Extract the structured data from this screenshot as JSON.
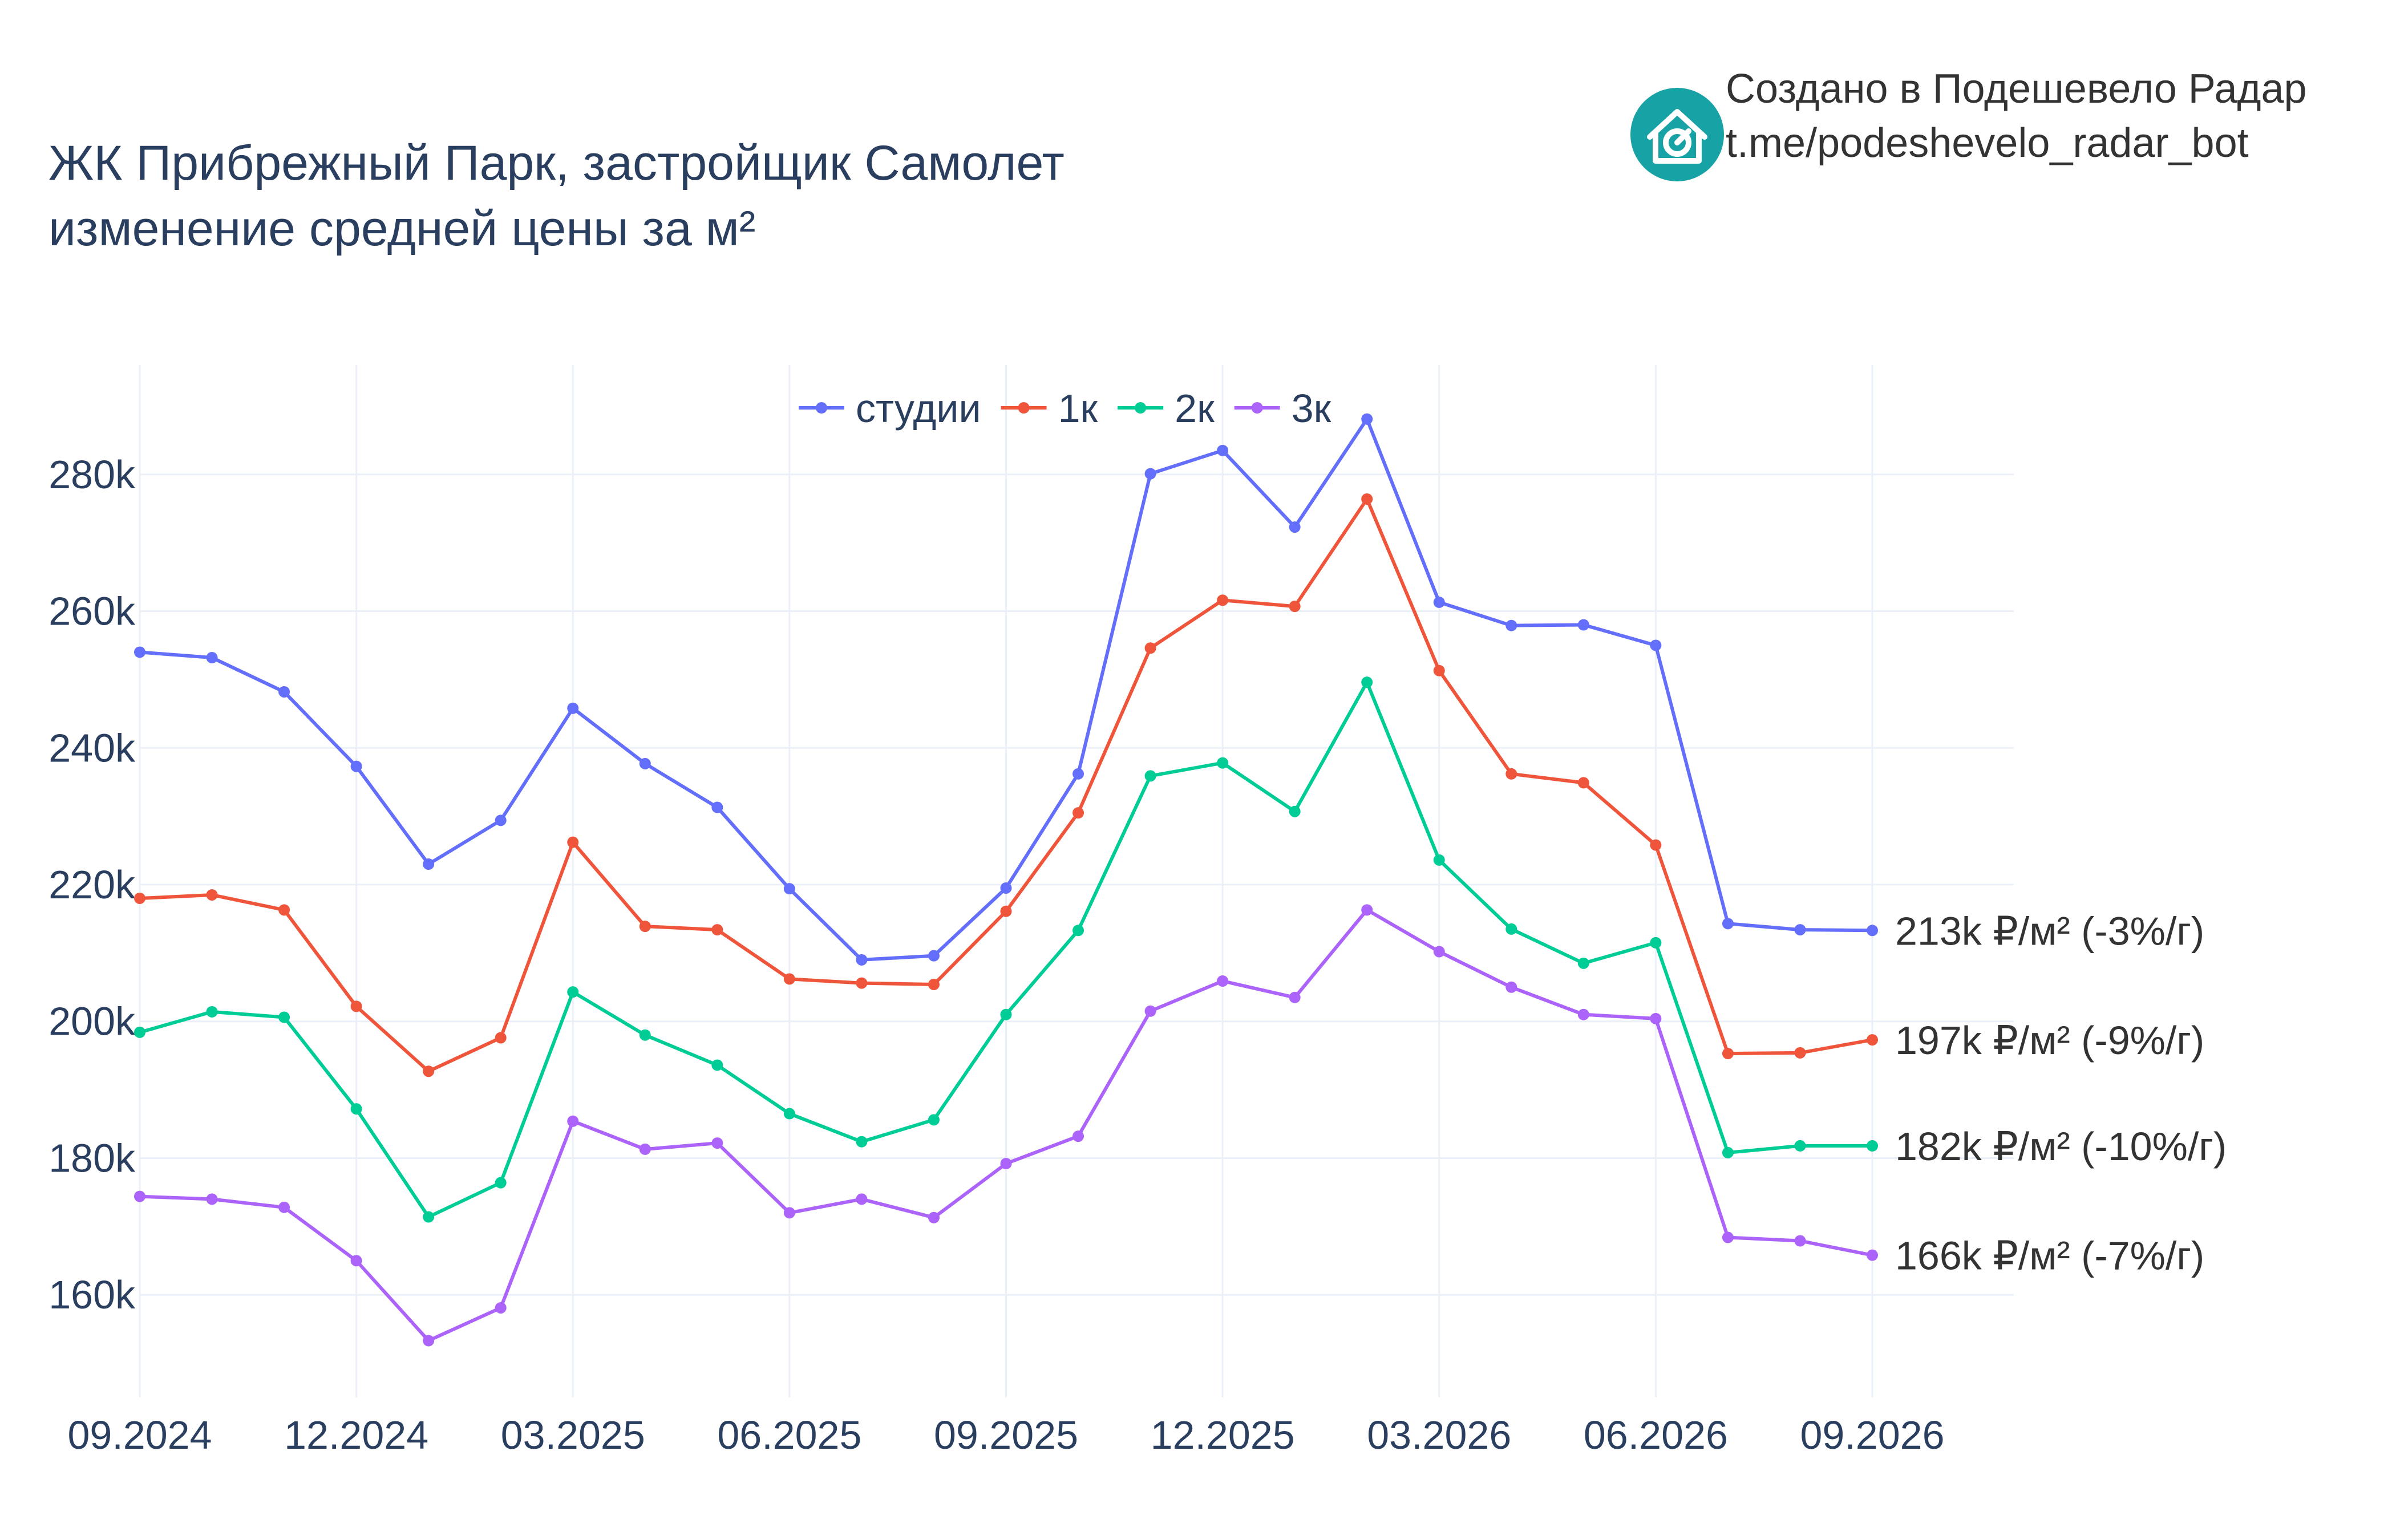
{
  "title": {
    "line1": "ЖК Прибрежный Парк, застройщик Самолет",
    "line2": "изменение средней цены за м²"
  },
  "credit": {
    "line1": "Создано в Подешевело Радар",
    "line2": "t.me/podeshevelo_radar_bot",
    "logo_icon": "house-chart-icon",
    "logo_color": "#17a2a6"
  },
  "chart_data": {
    "type": "line",
    "x": [
      "2024-09",
      "2024-10",
      "2024-11",
      "2024-12",
      "2025-01",
      "2025-02",
      "2025-03",
      "2025-04",
      "2025-05",
      "2025-06",
      "2025-07",
      "2025-08",
      "2025-09",
      "2025-10",
      "2025-11",
      "2025-12",
      "2026-01",
      "2026-02",
      "2026-03",
      "2026-04",
      "2026-05",
      "2026-06",
      "2026-07",
      "2026-08",
      "2026-09"
    ],
    "x_tick_labels": [
      "09.2024",
      "12.2024",
      "03.2025",
      "06.2025",
      "09.2025",
      "12.2025",
      "03.2026",
      "06.2026",
      "09.2026"
    ],
    "y_tick_values": [
      160000,
      180000,
      200000,
      220000,
      240000,
      260000,
      280000
    ],
    "y_tick_labels": [
      "160k",
      "180k",
      "200k",
      "220k",
      "240k",
      "260k",
      "280k"
    ],
    "ylim": [
      145000,
      296000
    ],
    "grid": true,
    "legend_position": "top-center",
    "series": [
      {
        "name": "студии",
        "color": "#636efa",
        "values": [
          254000,
          253200,
          248200,
          237300,
          223000,
          229400,
          245800,
          237700,
          231300,
          219400,
          209000,
          209600,
          219500,
          236200,
          280100,
          283500,
          272300,
          288100,
          261300,
          257900,
          258000,
          255000,
          214300,
          213400,
          213300
        ],
        "end_label": "213k ₽/м² (-3%/г)"
      },
      {
        "name": "1к",
        "color": "#ef553b",
        "values": [
          218000,
          218500,
          216300,
          202200,
          192700,
          197600,
          226200,
          213900,
          213400,
          206200,
          205600,
          205400,
          216100,
          230500,
          254600,
          261600,
          260700,
          276400,
          251300,
          236200,
          234900,
          225800,
          195300,
          195400,
          197300
        ],
        "end_label": "197k ₽/м² (-9%/г)"
      },
      {
        "name": "2к",
        "color": "#00cc96",
        "values": [
          198400,
          201400,
          200600,
          187200,
          171400,
          176400,
          204300,
          198000,
          193600,
          186500,
          182400,
          185600,
          201000,
          213300,
          235900,
          237800,
          230700,
          249600,
          223600,
          213500,
          208500,
          211500,
          180800,
          181800,
          181800
        ],
        "end_label": "182k ₽/м² (-10%/г)"
      },
      {
        "name": "3к",
        "color": "#ab63fa",
        "values": [
          174400,
          174000,
          172800,
          165000,
          153300,
          158100,
          185400,
          181300,
          182200,
          172000,
          174000,
          171300,
          179200,
          183200,
          201500,
          205900,
          203500,
          216300,
          210200,
          205000,
          201000,
          200400,
          168400,
          167900,
          165800
        ],
        "end_label": "166k ₽/м² (-7%/г)"
      }
    ]
  }
}
